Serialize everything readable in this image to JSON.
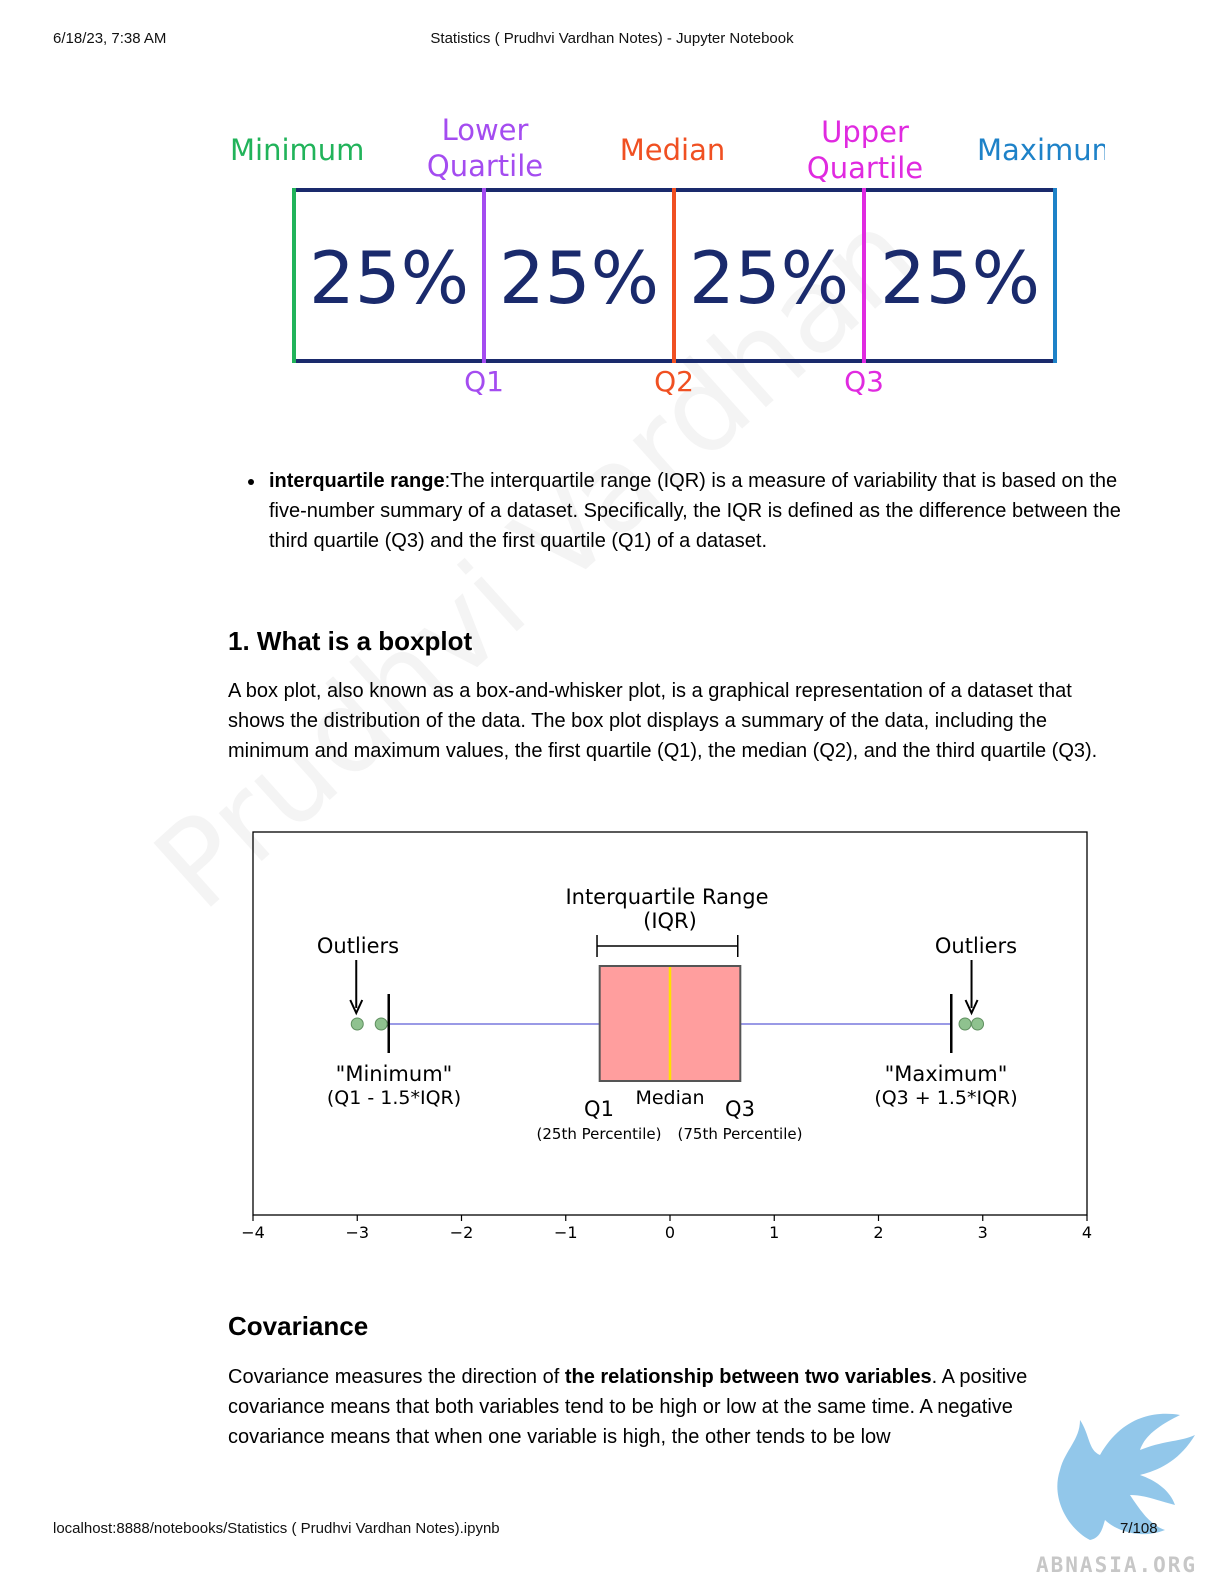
{
  "header": {
    "datetime": "6/18/23, 7:38 AM",
    "title": "Statistics ( Prudhvi Vardhan Notes) - Jupyter Notebook"
  },
  "quartile_figure": {
    "labels": [
      {
        "text": "Minimum",
        "color": "#21b35a"
      },
      {
        "text": "Lower\nQuartile",
        "color": "#a44cf0"
      },
      {
        "text": "Median",
        "color": "#f05022"
      },
      {
        "text": "Upper\nQuartile",
        "color": "#e02ae0"
      },
      {
        "text": "Maximum",
        "color": "#1e82c8"
      }
    ],
    "segments": [
      "25%",
      "25%",
      "25%",
      "25%"
    ],
    "markers": [
      {
        "text": "Q1",
        "color": "#a44cf0"
      },
      {
        "text": "Q2",
        "color": "#f05022"
      },
      {
        "text": "Q3",
        "color": "#e02ae0"
      }
    ],
    "box_color": "#1a2a6c"
  },
  "iqr_bullet": {
    "term": "interquartile range",
    "text": ":The interquartile range (IQR) is a measure of variability that is based on the five-number summary of a dataset. Specifically, the IQR is defined as the difference between the third quartile (Q3) and the first quartile (Q1) of a dataset."
  },
  "boxplot_section": {
    "heading": "1. What is a boxplot",
    "paragraph": "A box plot, also known as a box-and-whisker plot, is a graphical representation of a dataset that shows the distribution of the data. The box plot displays a summary of the data, including the minimum and maximum values, the first quartile (Q1), the median (Q2), and the third quartile (Q3)."
  },
  "boxplot_figure": {
    "title_line1": "Interquartile Range",
    "title_line2": "(IQR)",
    "outliers_left": "Outliers",
    "outliers_right": "Outliers",
    "minimum_line1": "\"Minimum\"",
    "minimum_line2": "(Q1 - 1.5*IQR)",
    "maximum_line1": "\"Maximum\"",
    "maximum_line2": "(Q3 + 1.5*IQR)",
    "q1_label": "Q1",
    "q1_sub": "(25th Percentile)",
    "median_label": "Median",
    "q3_label": "Q3",
    "q3_sub": "(75th Percentile)",
    "tick_labels": [
      "−4",
      "−3",
      "−2",
      "−1",
      "0",
      "1",
      "2",
      "3",
      "4"
    ],
    "box_fill": "#ff9e9e",
    "median_color": "#ffe100",
    "whisker_color": "#9a9ae6",
    "outlier_color": "#8fc28f"
  },
  "chart_data": {
    "type": "box",
    "xlim": [
      -4,
      4
    ],
    "q1": -0.6745,
    "median": 0,
    "q3": 0.6745,
    "whisker_low": -2.698,
    "whisker_high": 2.698,
    "iqr_bracket": [
      -0.7,
      0.65
    ],
    "outliers_left": [
      -3.0,
      -2.77
    ],
    "outliers_right": [
      2.83,
      2.95
    ],
    "xticks": [
      -4,
      -3,
      -2,
      -1,
      0,
      1,
      2,
      3,
      4
    ]
  },
  "covariance_section": {
    "heading": "Covariance",
    "text_before": "Covariance measures the direction of ",
    "bold": "the relationship between two variables",
    "text_after": ". A positive covariance means that both variables tend to be high or low at the same time. A negative covariance means that when one variable is high, the other tends to be low"
  },
  "watermark": "Prudhvi Vardhan",
  "footer": {
    "url": "localhost:8888/notebooks/Statistics ( Prudhvi Vardhan Notes).ipynb",
    "page": "7/108"
  },
  "logo": {
    "text": "ABNASIA.ORG",
    "icon": "griffin-logo-icon",
    "color": "#7fbde6"
  }
}
